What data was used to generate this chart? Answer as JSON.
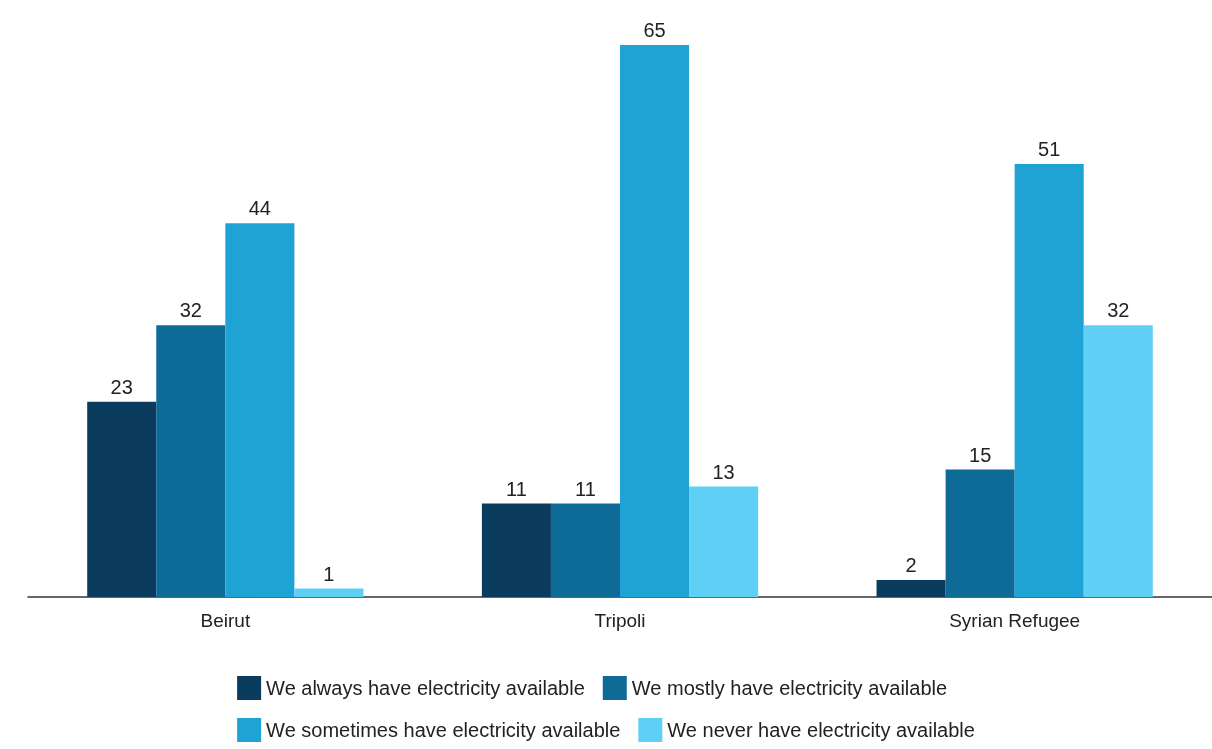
{
  "chart_data": {
    "type": "bar",
    "categories": [
      "Beirut",
      "Tripoli",
      "Syrian Refugee"
    ],
    "series": [
      {
        "name": "We always have electricity available",
        "color": "#0b3c5d",
        "values": [
          23,
          11,
          2
        ]
      },
      {
        "name": "We mostly have electricity available",
        "color": "#0e6a96",
        "values": [
          32,
          11,
          15
        ]
      },
      {
        "name": "We sometimes have electricity available",
        "color": "#1ea3d4",
        "values": [
          44,
          65,
          51
        ]
      },
      {
        "name": "We never have electricity available",
        "color": "#5fd0f5",
        "values": [
          1,
          13,
          32
        ]
      }
    ],
    "data_labels": true,
    "legend": "bottom",
    "grid": false
  }
}
